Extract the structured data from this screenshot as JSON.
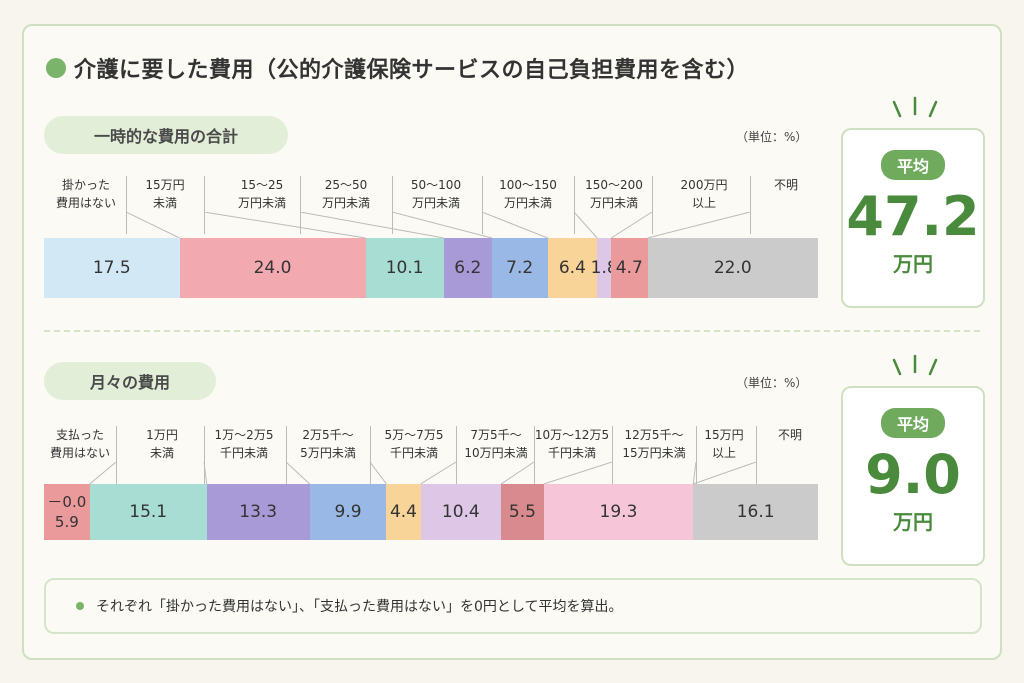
{
  "title": "介護に要した費用（公的介護保険サービスの自己負担費用を含む）",
  "note": "それぞれ「掛かった費用はない」、「支払った費用はない」を0円として平均を算出。",
  "chart_data": [
    {
      "type": "bar",
      "section_label": "一時的な費用の合計",
      "unit_label": "（単位：%）",
      "average_badge": "平均",
      "average_value": "47.2",
      "average_unit": "万円",
      "categories": [
        "掛かった\n費用はない",
        "15万円\n未満",
        "15～25\n万円未満",
        "25～50\n万円未満",
        "50～100\n万円未満",
        "100～150\n万円未満",
        "150～200\n万円未満",
        "200万円\n以上",
        "不明"
      ],
      "values": [
        17.5,
        24.0,
        10.1,
        6.2,
        7.2,
        6.4,
        1.8,
        4.7,
        22.0
      ],
      "value_labels": [
        "17.5",
        "24.0",
        "10.1",
        "6.2",
        "7.2",
        "6.4",
        "1.8",
        "4.7",
        "22.0"
      ],
      "colors": [
        "#d3e8f5",
        "#f2aab0",
        "#a8ddd4",
        "#a89ad6",
        "#9ab8e6",
        "#f9d499",
        "#ddc6e6",
        "#eb9a9c",
        "#cbcbcb"
      ]
    },
    {
      "type": "bar",
      "section_label": "月々の費用",
      "unit_label": "（単位：%）",
      "average_badge": "平均",
      "average_value": "9.0",
      "average_unit": "万円",
      "categories": [
        "支払った\n費用はない",
        "1万円\n未満",
        "1万～2万5\n千円未満",
        "2万5千～\n5万円未満",
        "5万～7万5\n千円未満",
        "7万5千～\n10万円未満",
        "10万～12万5\n千円未満",
        "12万5千～\n15万円未満",
        "15万円\n以上",
        "不明"
      ],
      "values": [
        5.9,
        15.1,
        13.3,
        9.9,
        4.4,
        10.4,
        5.5,
        19.3,
        0,
        16.1
      ],
      "value_labels": [
        "－0.0\n5.9",
        "15.1",
        "13.3",
        "9.9",
        "4.4",
        "10.4",
        "5.5",
        "19.3",
        "",
        "16.1"
      ],
      "colors": [
        "#eb9a9c",
        "#a8ddd4",
        "#a89ad6",
        "#9ab8e6",
        "#f9d499",
        "#ddc6e6",
        "#d98a8e",
        "#f6c6d8",
        "#cbcbcb",
        "#cbcbcb"
      ]
    }
  ]
}
